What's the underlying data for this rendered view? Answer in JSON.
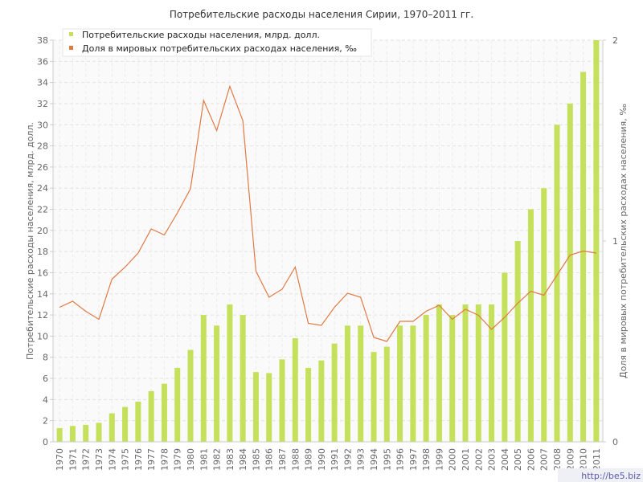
{
  "chart_data": {
    "type": "bar+line",
    "title": "Потребительские расходы населения Сирии, 1970–2011 гг.",
    "ylabel_left": "Потребительские расходы населения, млрд. долл.",
    "ylabel_right": "Доля в мировых потребительских расходах населения, ‰",
    "ylim_left": [
      0,
      38
    ],
    "ylim_right": [
      0,
      2
    ],
    "yticks_left": [
      "0",
      "2",
      "4",
      "6",
      "8",
      "10",
      "12",
      "14",
      "16",
      "18",
      "20",
      "22",
      "24",
      "26",
      "28",
      "30",
      "32",
      "34",
      "36",
      "38"
    ],
    "yticks_right": [
      "0",
      "1",
      "2"
    ],
    "grid": true,
    "legend_position": "top-left",
    "categories": [
      "1970",
      "1971",
      "1972",
      "1973",
      "1974",
      "1975",
      "1976",
      "1977",
      "1978",
      "1979",
      "1980",
      "1981",
      "1982",
      "1983",
      "1984",
      "1985",
      "1986",
      "1987",
      "1988",
      "1989",
      "1990",
      "1991",
      "1992",
      "1993",
      "1994",
      "1995",
      "1996",
      "1997",
      "1998",
      "1999",
      "2000",
      "2001",
      "2002",
      "2003",
      "2004",
      "2005",
      "2006",
      "2007",
      "2008",
      "2009",
      "2010",
      "2011"
    ],
    "series": [
      {
        "name": "Потребительские расходы населения, млрд. долл.",
        "type": "bar",
        "axis": "left",
        "color": "#c5e05a",
        "values": [
          1.3,
          1.5,
          1.6,
          1.8,
          2.7,
          3.3,
          3.8,
          4.8,
          5.5,
          7.0,
          8.7,
          12.0,
          11.0,
          13.0,
          12.0,
          6.6,
          6.5,
          7.8,
          9.8,
          7.0,
          7.7,
          9.3,
          11.0,
          11.0,
          8.5,
          9.0,
          11.0,
          11.0,
          12.0,
          13.0,
          12.0,
          13.0,
          13.0,
          13.0,
          16.0,
          19.0,
          22.0,
          24.0,
          30.0,
          32.0,
          35.0,
          38.0
        ]
      },
      {
        "name": "Доля в мировых потребительских расходах населения, ‰",
        "type": "line",
        "axis": "right",
        "color": "#e07a45",
        "values": [
          0.67,
          0.7,
          0.65,
          0.61,
          0.81,
          0.87,
          0.94,
          1.06,
          1.03,
          1.14,
          1.26,
          1.7,
          1.55,
          1.77,
          1.6,
          0.85,
          0.72,
          0.76,
          0.87,
          0.59,
          0.58,
          0.67,
          0.74,
          0.72,
          0.52,
          0.5,
          0.6,
          0.6,
          0.65,
          0.68,
          0.61,
          0.66,
          0.63,
          0.56,
          0.62,
          0.69,
          0.75,
          0.73,
          0.83,
          0.93,
          0.95,
          0.94
        ]
      }
    ]
  },
  "watermark": "http://be5.biz"
}
